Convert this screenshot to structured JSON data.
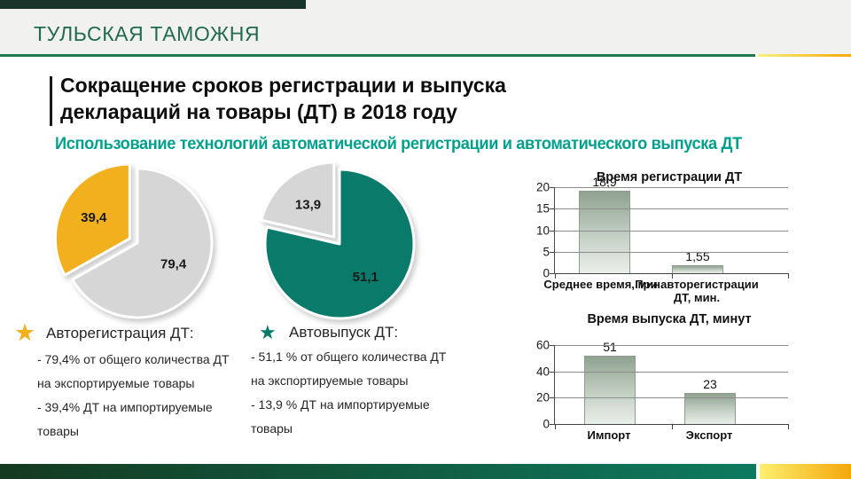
{
  "slide": {
    "header_title": "ТУЛЬСКАЯ ТАМОЖНЯ",
    "title_line1": "Сокращение сроков регистрации и выпуска",
    "title_line2": "деклараций на товары (ДТ) в 2018 году",
    "subtitle": "Использование технологий автоматической регистрации и автоматического выпуска ДТ"
  },
  "colors": {
    "header_accent": "#17332a",
    "header_text": "#226b4f",
    "rule_green": "#1f7a52",
    "subtitle_teal": "#00a08d",
    "pie_yellow": "#f2b01e",
    "pie_gray": "#d6d6d6",
    "pie_teal": "#0a7a6a",
    "bar_gradient_top": "#8fa391",
    "bar_gradient_bottom": "#e9efe9",
    "footer_green_left": "#143a20",
    "footer_green_right": "#0d7a5f",
    "footer_yellow_left": "#fdef6e",
    "footer_yellow_right": "#f3a70a"
  },
  "blocks": [
    {
      "icon": "star",
      "heading": "Авторегистрация ДТ:",
      "lines": [
        "- 79,4% от общего количества ДТ",
        "на экспортируемые  товары",
        "- 39,4% ДТ на импортируемые",
        "товары"
      ]
    },
    {
      "icon": "star",
      "heading": "Автовыпуск ДТ:",
      "lines": [
        "- 51,1 % от общего количества  ДТ",
        "на экспортируемые  товары",
        "- 13,9 % ДТ на импортируемые",
        "товары"
      ]
    }
  ],
  "chart_data": [
    {
      "type": "pie",
      "title": "Авторегистрация ДТ",
      "legend_position": "none",
      "start_angle_deg": 0,
      "slices": [
        {
          "label": "79,4",
          "value": 79.4,
          "color": "#d6d6d6",
          "explode": false
        },
        {
          "label": "39,4",
          "value": 39.4,
          "color": "#f2b01e",
          "explode": true
        }
      ]
    },
    {
      "type": "pie",
      "title": "Автовыпуск ДТ",
      "legend_position": "none",
      "start_angle_deg": 0,
      "slices": [
        {
          "label": "51,1",
          "value": 51.1,
          "color": "#0a7a6a",
          "explode": false
        },
        {
          "label": "13,9",
          "value": 13.9,
          "color": "#d6d6d6",
          "explode": true
        }
      ]
    },
    {
      "type": "bar",
      "title": "Время регистрации ДТ",
      "categories": [
        "Среднее время, мин.",
        "При авторегистрации ДТ, мин."
      ],
      "values": [
        18.9,
        1.55
      ],
      "value_labels": [
        "18,9",
        "1,55"
      ],
      "yticks": [
        20,
        15,
        10,
        5,
        0
      ],
      "ylim": [
        0,
        20
      ],
      "grid": true,
      "legend_position": "none"
    },
    {
      "type": "bar",
      "title": "Время выпуска ДТ, минут",
      "categories": [
        "Импорт",
        "Экспорт"
      ],
      "values": [
        51,
        23
      ],
      "value_labels": [
        "51",
        "23"
      ],
      "yticks": [
        60,
        40,
        20,
        0
      ],
      "ylim": [
        0,
        60
      ],
      "grid": true,
      "legend_position": "none"
    }
  ]
}
